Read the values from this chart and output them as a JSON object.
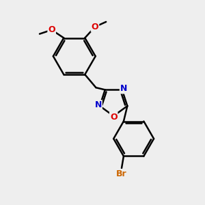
{
  "background_color": "#eeeeee",
  "bond_color": "#000000",
  "N_color": "#0000cc",
  "O_color": "#dd0000",
  "Br_color": "#cc6600",
  "line_width": 1.8,
  "figsize": [
    3.0,
    3.0
  ],
  "dpi": 100,
  "xlim": [
    0,
    10
  ],
  "ylim": [
    0,
    10
  ]
}
